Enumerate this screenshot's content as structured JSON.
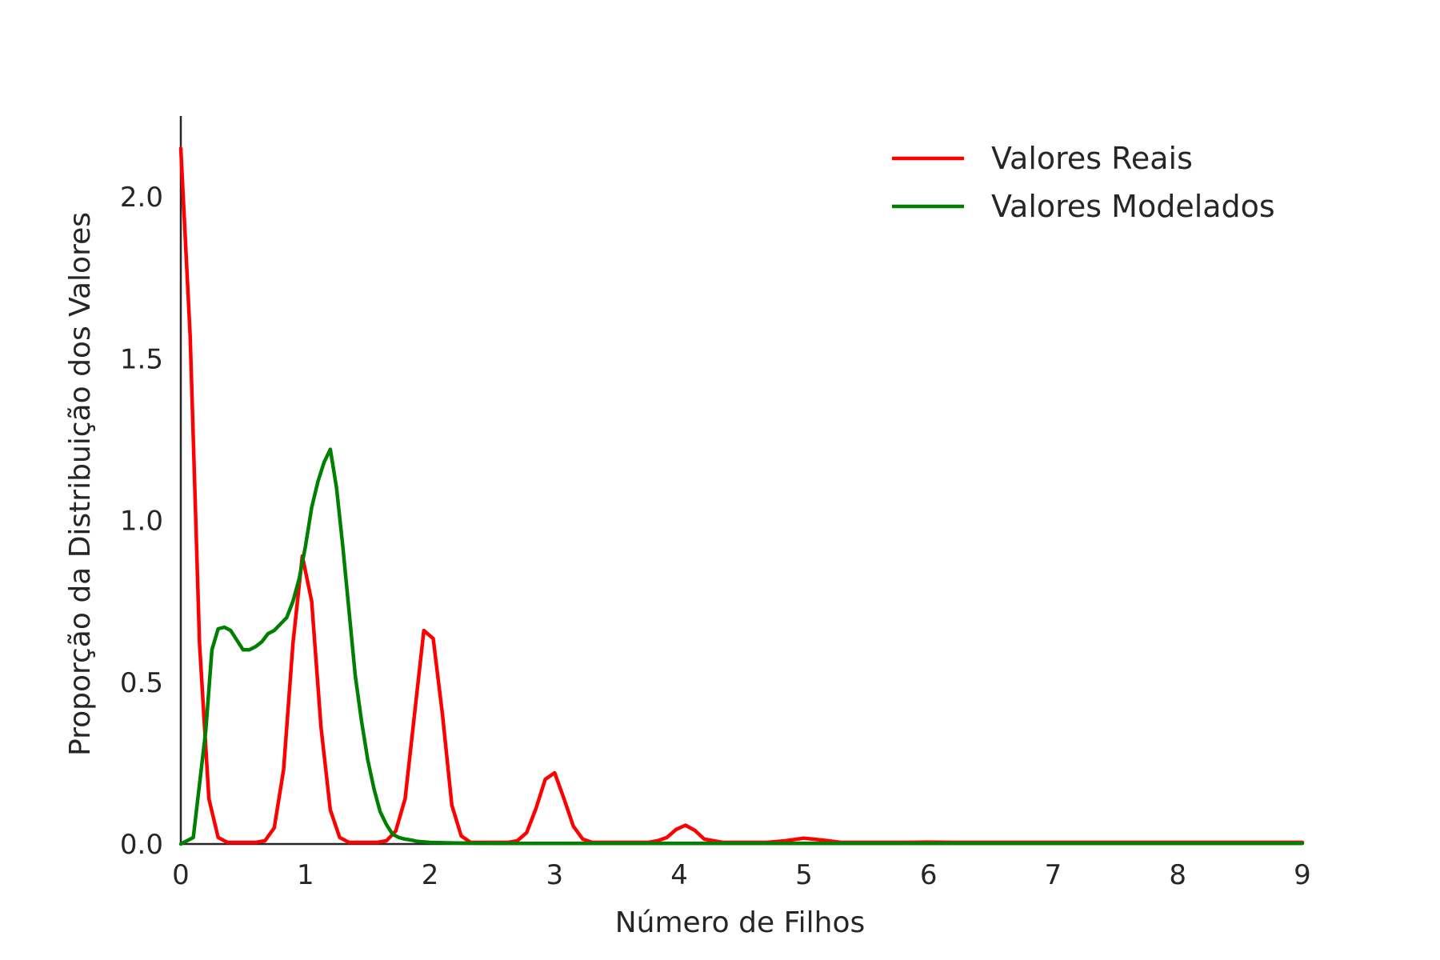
{
  "chart_data": {
    "type": "line",
    "title": "",
    "xlabel": "Número de Filhos",
    "ylabel": "Proporção da Distribuição dos Valores",
    "xlim": [
      0,
      9
    ],
    "ylim": [
      0,
      2.25
    ],
    "xticks": [
      "0",
      "1",
      "2",
      "3",
      "4",
      "5",
      "6",
      "7",
      "8",
      "9"
    ],
    "yticks": [
      "0.0",
      "0.5",
      "1.0",
      "1.5",
      "2.0"
    ],
    "grid": false,
    "legend_position": "top-right",
    "series": [
      {
        "name": "Valores Reais",
        "color": "#ff0000",
        "x": [
          0,
          0.075,
          0.15,
          0.225,
          0.3,
          0.375,
          0.45,
          0.525,
          0.6,
          0.675,
          0.75,
          0.825,
          0.9,
          0.975,
          1.05,
          1.125,
          1.2,
          1.275,
          1.35,
          1.425,
          1.5,
          1.575,
          1.65,
          1.725,
          1.8,
          1.875,
          1.95,
          2.025,
          2.1,
          2.175,
          2.25,
          2.325,
          2.4,
          2.475,
          2.55,
          2.625,
          2.7,
          2.775,
          2.85,
          2.925,
          3.0,
          3.075,
          3.15,
          3.225,
          3.3,
          3.375,
          3.45,
          3.6,
          3.75,
          3.825,
          3.9,
          3.975,
          4.05,
          4.125,
          4.2,
          4.35,
          4.5,
          4.7,
          4.85,
          5.0,
          5.15,
          5.3,
          5.5,
          5.8,
          6.0,
          6.2,
          6.5,
          7.0,
          7.5,
          8.0,
          8.5,
          9.0
        ],
        "values": [
          2.15,
          1.57,
          0.62,
          0.14,
          0.02,
          0.005,
          0.005,
          0.005,
          0.005,
          0.01,
          0.05,
          0.23,
          0.62,
          0.89,
          0.75,
          0.36,
          0.105,
          0.02,
          0.005,
          0.005,
          0.005,
          0.005,
          0.01,
          0.04,
          0.14,
          0.4,
          0.66,
          0.635,
          0.4,
          0.12,
          0.025,
          0.005,
          0.005,
          0.005,
          0.005,
          0.005,
          0.01,
          0.035,
          0.11,
          0.2,
          0.22,
          0.14,
          0.055,
          0.015,
          0.005,
          0.005,
          0.005,
          0.005,
          0.005,
          0.01,
          0.02,
          0.045,
          0.058,
          0.042,
          0.015,
          0.005,
          0.005,
          0.005,
          0.01,
          0.018,
          0.012,
          0.005,
          0.005,
          0.005,
          0.006,
          0.005,
          0.005,
          0.005,
          0.005,
          0.005,
          0.005,
          0.005
        ]
      },
      {
        "name": "Valores Modelados",
        "color": "#008000",
        "x": [
          0,
          0.1,
          0.2,
          0.25,
          0.3,
          0.35,
          0.4,
          0.45,
          0.5,
          0.55,
          0.6,
          0.65,
          0.7,
          0.75,
          0.8,
          0.85,
          0.9,
          0.95,
          1.0,
          1.05,
          1.1,
          1.15,
          1.2,
          1.25,
          1.3,
          1.35,
          1.4,
          1.45,
          1.5,
          1.55,
          1.6,
          1.65,
          1.7,
          1.75,
          1.8,
          1.85,
          1.9,
          2.0,
          2.2,
          2.5,
          3.0,
          4.0,
          5.0,
          6.0,
          7.0,
          8.0,
          9.0
        ],
        "values": [
          0.0,
          0.02,
          0.35,
          0.6,
          0.665,
          0.67,
          0.66,
          0.63,
          0.6,
          0.6,
          0.61,
          0.625,
          0.65,
          0.66,
          0.68,
          0.7,
          0.75,
          0.82,
          0.92,
          1.04,
          1.12,
          1.18,
          1.22,
          1.1,
          0.92,
          0.72,
          0.52,
          0.38,
          0.26,
          0.17,
          0.1,
          0.06,
          0.03,
          0.02,
          0.015,
          0.012,
          0.008,
          0.005,
          0.003,
          0.002,
          0.002,
          0.002,
          0.002,
          0.002,
          0.002,
          0.002,
          0.002
        ]
      }
    ]
  }
}
